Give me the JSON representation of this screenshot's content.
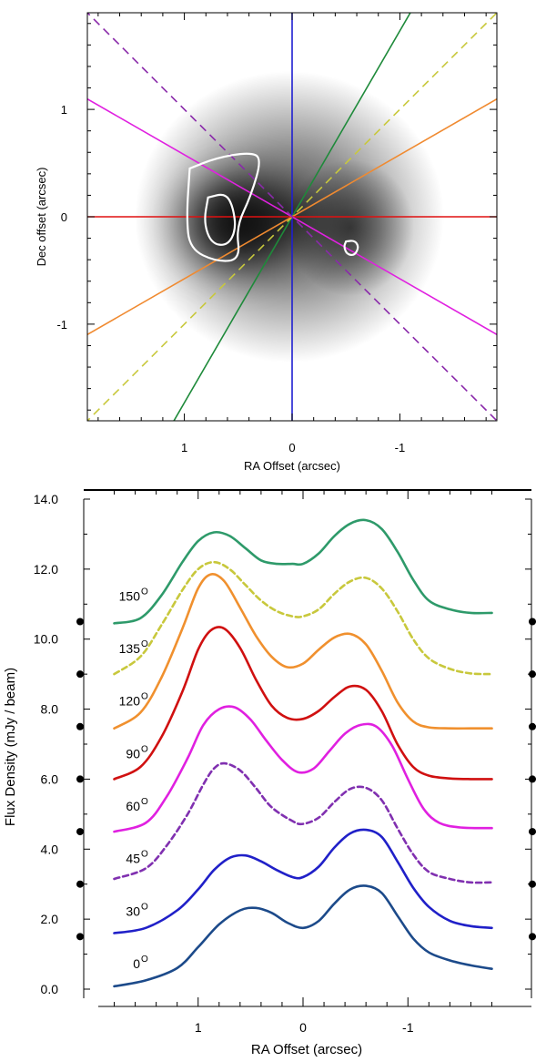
{
  "chart_data": [
    {
      "type": "heatmap",
      "xlabel": "RA Offset (arcsec)",
      "ylabel": "Dec offset (arcsec)",
      "xlim": [
        1.9,
        -1.9
      ],
      "ylim": [
        -1.9,
        1.9
      ],
      "x_tick_labels": [
        "1",
        "0",
        "-1"
      ],
      "x_tick_values": [
        1,
        0,
        -1
      ],
      "y_tick_labels": [
        "1",
        "0",
        "-1"
      ],
      "y_tick_values": [
        1,
        0,
        -1
      ],
      "image": {
        "colormap": "grayscale, white = low, black = high",
        "peak_ra": 0.55,
        "peak_dec": -0.05,
        "width_arcsec": 0.65
      },
      "cut_lines": [
        {
          "angle_deg": 0,
          "color": "#1f1fd0",
          "dash": false
        },
        {
          "angle_deg": 30,
          "color": "#1e8a3a",
          "dash": false
        },
        {
          "angle_deg": 45,
          "color": "#c8c83c",
          "dash": true
        },
        {
          "angle_deg": 60,
          "color": "#f08a30",
          "dash": false
        },
        {
          "angle_deg": 90,
          "color": "#e01010",
          "dash": false
        },
        {
          "angle_deg": 120,
          "color": "#e020e0",
          "dash": false
        },
        {
          "angle_deg": 135,
          "color": "#8a2aaa",
          "dash": true
        }
      ],
      "contours": [
        {
          "color": "#ffffff",
          "points": [
            [
              0.95,
              0.45
            ],
            [
              0.7,
              0.55
            ],
            [
              0.4,
              0.6
            ],
            [
              0.28,
              0.55
            ],
            [
              0.38,
              0.2
            ],
            [
              0.52,
              -0.1
            ],
            [
              0.48,
              -0.4
            ],
            [
              0.7,
              -0.42
            ],
            [
              0.95,
              -0.3
            ],
            [
              0.98,
              0.0
            ],
            [
              0.95,
              0.45
            ]
          ]
        },
        {
          "color": "#ffffff",
          "points": [
            [
              0.78,
              0.18
            ],
            [
              0.62,
              0.22
            ],
            [
              0.55,
              0.1
            ],
            [
              0.52,
              -0.12
            ],
            [
              0.6,
              -0.27
            ],
            [
              0.75,
              -0.25
            ],
            [
              0.82,
              -0.05
            ],
            [
              0.78,
              0.18
            ]
          ]
        },
        {
          "color": "#ffffff",
          "points": [
            [
              -0.5,
              -0.23
            ],
            [
              -0.58,
              -0.22
            ],
            [
              -0.62,
              -0.28
            ],
            [
              -0.58,
              -0.36
            ],
            [
              -0.51,
              -0.35
            ],
            [
              -0.48,
              -0.28
            ],
            [
              -0.5,
              -0.23
            ]
          ]
        }
      ]
    },
    {
      "type": "line",
      "xlabel": "RA Offset (arcsec)",
      "ylabel": "Flux Density (mJy / beam)",
      "xlim": [
        1.9,
        -1.9
      ],
      "ylim": [
        0.0,
        14.0
      ],
      "x_tick_labels": [
        "1",
        "0",
        "-1"
      ],
      "x_tick_values": [
        1,
        0,
        -1
      ],
      "y_tick_labels": [
        "0.0",
        "2.0",
        "4.0",
        "6.0",
        "8.0",
        "10.0",
        "12.0",
        "14.0"
      ],
      "y_tick_values": [
        0,
        2,
        4,
        6,
        8,
        10,
        12,
        14
      ],
      "side_markers": [
        1.5,
        3.0,
        4.5,
        6.0,
        7.5,
        9.0,
        10.5
      ],
      "series": [
        {
          "name": "0",
          "label_value": 0.6,
          "color": "#1c4a8a",
          "dash": false,
          "x": [
            1.8,
            1.5,
            1.2,
            1.0,
            0.8,
            0.6,
            0.45,
            0.3,
            0.15,
            0.0,
            -0.15,
            -0.3,
            -0.45,
            -0.6,
            -0.75,
            -0.9,
            -1.05,
            -1.2,
            -1.4,
            -1.6,
            -1.8
          ],
          "y": [
            0.08,
            0.25,
            0.6,
            1.2,
            1.85,
            2.25,
            2.32,
            2.18,
            1.9,
            1.75,
            1.95,
            2.45,
            2.85,
            2.95,
            2.75,
            2.1,
            1.45,
            1.05,
            0.82,
            0.68,
            0.58
          ]
        },
        {
          "name": "30",
          "label_value": 2.1,
          "color": "#2020c8",
          "dash": false,
          "x": [
            1.8,
            1.5,
            1.2,
            1.0,
            0.85,
            0.7,
            0.55,
            0.4,
            0.25,
            0.1,
            0.0,
            -0.15,
            -0.3,
            -0.45,
            -0.6,
            -0.75,
            -0.9,
            -1.05,
            -1.2,
            -1.4,
            -1.6,
            -1.8
          ],
          "y": [
            1.6,
            1.75,
            2.25,
            2.85,
            3.4,
            3.75,
            3.82,
            3.65,
            3.4,
            3.2,
            3.2,
            3.5,
            4.05,
            4.45,
            4.55,
            4.35,
            3.65,
            2.9,
            2.35,
            1.95,
            1.8,
            1.75
          ]
        },
        {
          "name": "45",
          "label_value": 3.6,
          "color": "#8030b0",
          "dash": true,
          "x": [
            1.8,
            1.5,
            1.3,
            1.1,
            0.95,
            0.85,
            0.75,
            0.6,
            0.45,
            0.3,
            0.1,
            0.0,
            -0.15,
            -0.3,
            -0.45,
            -0.6,
            -0.75,
            -0.9,
            -1.05,
            -1.2,
            -1.4,
            -1.6,
            -1.8
          ],
          "y": [
            3.15,
            3.45,
            4.1,
            5.0,
            5.85,
            6.3,
            6.45,
            6.25,
            5.75,
            5.2,
            4.8,
            4.72,
            4.9,
            5.35,
            5.72,
            5.75,
            5.4,
            4.6,
            3.85,
            3.35,
            3.15,
            3.05,
            3.05
          ]
        },
        {
          "name": "60",
          "label_value": 5.1,
          "color": "#e020e0",
          "dash": false,
          "x": [
            1.8,
            1.5,
            1.3,
            1.1,
            0.95,
            0.8,
            0.65,
            0.5,
            0.35,
            0.2,
            0.05,
            -0.1,
            -0.25,
            -0.4,
            -0.55,
            -0.7,
            -0.85,
            -1.0,
            -1.15,
            -1.3,
            -1.5,
            -1.8
          ],
          "y": [
            4.5,
            4.75,
            5.5,
            6.6,
            7.55,
            8.0,
            8.05,
            7.7,
            7.1,
            6.55,
            6.2,
            6.3,
            6.8,
            7.3,
            7.55,
            7.5,
            6.95,
            6.0,
            5.15,
            4.75,
            4.62,
            4.6
          ]
        },
        {
          "name": "90",
          "label_value": 6.6,
          "color": "#d01010",
          "dash": false,
          "x": [
            1.8,
            1.55,
            1.35,
            1.15,
            1.0,
            0.88,
            0.75,
            0.6,
            0.45,
            0.3,
            0.15,
            0.0,
            -0.15,
            -0.3,
            -0.45,
            -0.6,
            -0.75,
            -0.9,
            -1.05,
            -1.2,
            -1.4,
            -1.6,
            -1.8
          ],
          "y": [
            6.0,
            6.35,
            7.2,
            8.5,
            9.7,
            10.25,
            10.3,
            9.75,
            8.85,
            8.1,
            7.75,
            7.72,
            7.95,
            8.35,
            8.65,
            8.55,
            7.95,
            7.0,
            6.35,
            6.1,
            6.02,
            6.0,
            6.0
          ]
        },
        {
          "name": "120",
          "label_value": 8.1,
          "color": "#f0902e",
          "dash": false,
          "x": [
            1.8,
            1.55,
            1.35,
            1.15,
            1.0,
            0.88,
            0.75,
            0.6,
            0.45,
            0.3,
            0.15,
            0.0,
            -0.15,
            -0.3,
            -0.45,
            -0.6,
            -0.75,
            -0.9,
            -1.05,
            -1.2,
            -1.4,
            -1.6,
            -1.8
          ],
          "y": [
            7.45,
            7.9,
            8.9,
            10.3,
            11.45,
            11.85,
            11.65,
            10.9,
            10.1,
            9.5,
            9.2,
            9.3,
            9.7,
            10.05,
            10.15,
            9.85,
            9.1,
            8.2,
            7.65,
            7.48,
            7.45,
            7.45,
            7.45
          ]
        },
        {
          "name": "135",
          "label_value": 9.6,
          "color": "#c8c83c",
          "dash": true,
          "x": [
            1.8,
            1.55,
            1.35,
            1.15,
            1.0,
            0.85,
            0.7,
            0.55,
            0.4,
            0.25,
            0.1,
            0.0,
            -0.15,
            -0.3,
            -0.45,
            -0.6,
            -0.75,
            -0.9,
            -1.05,
            -1.2,
            -1.4,
            -1.6,
            -1.8
          ],
          "y": [
            9.0,
            9.5,
            10.4,
            11.4,
            12.0,
            12.2,
            12.0,
            11.55,
            11.1,
            10.8,
            10.65,
            10.65,
            10.85,
            11.3,
            11.65,
            11.75,
            11.45,
            10.8,
            10.0,
            9.45,
            9.15,
            9.02,
            9.0
          ]
        },
        {
          "name": "150",
          "label_value": 11.1,
          "color": "#2e9a6a",
          "dash": false,
          "x": [
            1.8,
            1.55,
            1.35,
            1.15,
            1.0,
            0.85,
            0.7,
            0.55,
            0.4,
            0.25,
            0.1,
            0.0,
            -0.15,
            -0.3,
            -0.45,
            -0.6,
            -0.75,
            -0.9,
            -1.05,
            -1.2,
            -1.4,
            -1.6,
            -1.8
          ],
          "y": [
            10.45,
            10.6,
            11.25,
            12.2,
            12.8,
            13.05,
            12.95,
            12.6,
            12.25,
            12.15,
            12.15,
            12.15,
            12.45,
            12.95,
            13.3,
            13.4,
            13.15,
            12.5,
            11.7,
            11.1,
            10.85,
            10.75,
            10.75
          ]
        }
      ]
    }
  ]
}
